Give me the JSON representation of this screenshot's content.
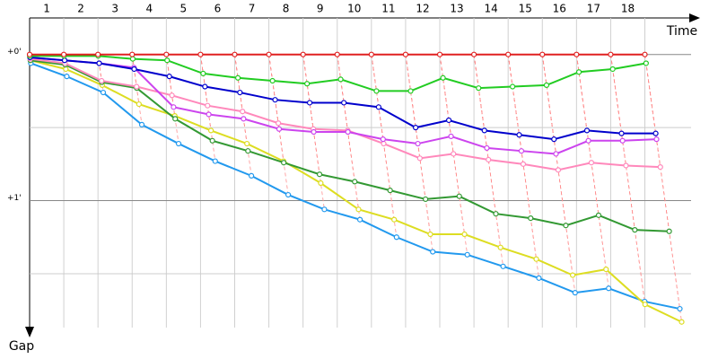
{
  "chart_data": {
    "type": "gap",
    "laps": [
      1,
      2,
      3,
      4,
      5,
      6,
      7,
      8,
      9,
      10,
      11,
      12,
      13,
      14,
      15,
      16,
      17,
      18
    ],
    "x": [
      0,
      1.7,
      3.4,
      5.1,
      6.8,
      8.5,
      10.2,
      11.9,
      13.6,
      15.3,
      17,
      18.7,
      20.4,
      22.1,
      23.8,
      25.5,
      27.2,
      28.9,
      30.6
    ],
    "xlim": [
      0,
      33.3
    ],
    "ylim": [
      -0.25,
      1.93
    ],
    "yticks": [
      {
        "value": 0,
        "label": "+0'"
      },
      {
        "value": 1,
        "label": "+1'"
      }
    ],
    "minor_yticks": [
      0.5,
      1.5
    ],
    "xlabel": "Time",
    "ylabel": "Gap",
    "grid": true,
    "series": [
      {
        "color": "#e02020",
        "values": [
          0,
          0,
          0,
          0,
          0,
          0,
          0,
          0,
          0,
          0,
          0,
          0,
          0,
          0,
          0,
          0,
          0,
          0,
          0
        ]
      },
      {
        "color": "#22cc22",
        "values": [
          0.01,
          0.01,
          0.01,
          0.03,
          0.04,
          0.13,
          0.16,
          0.18,
          0.2,
          0.17,
          0.25,
          0.25,
          0.16,
          0.23,
          0.22,
          0.21,
          0.12,
          0.1,
          0.06
        ]
      },
      {
        "color": "#0000cc",
        "values": [
          0.02,
          0.04,
          0.06,
          0.1,
          0.15,
          0.22,
          0.26,
          0.31,
          0.33,
          0.33,
          0.36,
          0.5,
          0.45,
          0.52,
          0.55,
          0.58,
          0.52,
          0.54,
          0.54
        ]
      },
      {
        "color": "#cc44ee",
        "values": [
          0.02,
          0.04,
          0.06,
          0.09,
          0.36,
          0.41,
          0.44,
          0.51,
          0.53,
          0.53,
          0.58,
          0.61,
          0.56,
          0.64,
          0.66,
          0.68,
          0.59,
          0.59,
          0.58
        ]
      },
      {
        "color": "#ff88bb",
        "values": [
          0.03,
          0.06,
          0.18,
          0.22,
          0.28,
          0.35,
          0.39,
          0.47,
          0.51,
          0.52,
          0.61,
          0.71,
          0.68,
          0.72,
          0.75,
          0.79,
          0.74,
          0.76,
          0.77
        ]
      },
      {
        "color": "#339933",
        "values": [
          0.04,
          0.07,
          0.19,
          0.23,
          0.44,
          0.59,
          0.66,
          0.74,
          0.82,
          0.87,
          0.93,
          0.99,
          0.97,
          1.09,
          1.12,
          1.17,
          1.1,
          1.2,
          1.21
        ]
      },
      {
        "color": "#dddd22",
        "values": [
          0.04,
          0.1,
          0.21,
          0.34,
          0.42,
          0.52,
          0.61,
          0.73,
          0.88,
          1.06,
          1.13,
          1.23,
          1.23,
          1.32,
          1.4,
          1.51,
          1.47,
          1.71,
          1.83
        ]
      },
      {
        "color": "#2299ee",
        "values": [
          0.06,
          0.15,
          0.26,
          0.48,
          0.61,
          0.73,
          0.83,
          0.96,
          1.06,
          1.13,
          1.25,
          1.35,
          1.37,
          1.45,
          1.53,
          1.63,
          1.6,
          1.69,
          1.74
        ]
      }
    ]
  }
}
